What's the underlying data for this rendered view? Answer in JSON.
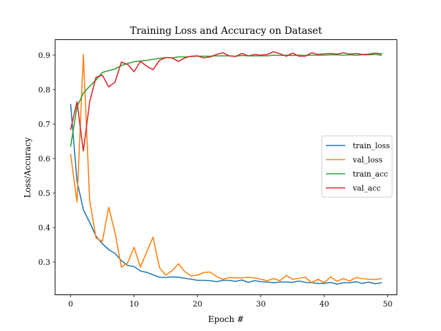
{
  "chart_data": {
    "type": "line",
    "title": "Training Loss and Accuracy on Dataset",
    "xlabel": "Epoch #",
    "ylabel": "Loss/Accuracy",
    "xlim": [
      -2.45,
      51.45
    ],
    "ylim": [
      0.205,
      0.945
    ],
    "xticks": [
      0,
      10,
      20,
      30,
      40,
      50
    ],
    "yticks": [
      0.3,
      0.4,
      0.5,
      0.6,
      0.7,
      0.8,
      0.9
    ],
    "ytick_labels": [
      "0.3",
      "0.4",
      "0.5",
      "0.6",
      "0.7",
      "0.8",
      "0.9"
    ],
    "grid": false,
    "legend_position": "center-right",
    "x": [
      0,
      1,
      2,
      3,
      4,
      5,
      6,
      7,
      8,
      9,
      10,
      11,
      12,
      13,
      14,
      15,
      16,
      17,
      18,
      19,
      20,
      21,
      22,
      23,
      24,
      25,
      26,
      27,
      28,
      29,
      30,
      31,
      32,
      33,
      34,
      35,
      36,
      37,
      38,
      39,
      40,
      41,
      42,
      43,
      44,
      45,
      46,
      47,
      48,
      49
    ],
    "series": [
      {
        "name": "train_loss",
        "color": "#1f77b4",
        "values": [
          0.757,
          0.535,
          0.452,
          0.415,
          0.375,
          0.353,
          0.336,
          0.325,
          0.304,
          0.29,
          0.287,
          0.274,
          0.27,
          0.263,
          0.256,
          0.255,
          0.257,
          0.256,
          0.253,
          0.25,
          0.247,
          0.247,
          0.246,
          0.243,
          0.247,
          0.247,
          0.244,
          0.248,
          0.241,
          0.246,
          0.243,
          0.242,
          0.24,
          0.242,
          0.242,
          0.241,
          0.245,
          0.241,
          0.24,
          0.238,
          0.238,
          0.241,
          0.236,
          0.24,
          0.24,
          0.243,
          0.238,
          0.242,
          0.237,
          0.24
        ]
      },
      {
        "name": "val_loss",
        "color": "#ff7f0e",
        "values": [
          0.612,
          0.474,
          0.902,
          0.478,
          0.37,
          0.36,
          0.459,
          0.385,
          0.285,
          0.298,
          0.343,
          0.285,
          0.33,
          0.372,
          0.284,
          0.262,
          0.275,
          0.295,
          0.272,
          0.26,
          0.262,
          0.27,
          0.271,
          0.258,
          0.25,
          0.255,
          0.254,
          0.254,
          0.256,
          0.254,
          0.25,
          0.246,
          0.252,
          0.246,
          0.261,
          0.25,
          0.253,
          0.256,
          0.24,
          0.25,
          0.24,
          0.257,
          0.244,
          0.252,
          0.245,
          0.255,
          0.252,
          0.25,
          0.249,
          0.252
        ]
      },
      {
        "name": "train_acc",
        "color": "#2ca02c",
        "values": [
          0.636,
          0.75,
          0.79,
          0.81,
          0.828,
          0.85,
          0.855,
          0.86,
          0.87,
          0.876,
          0.881,
          0.883,
          0.885,
          0.888,
          0.891,
          0.893,
          0.892,
          0.895,
          0.895,
          0.896,
          0.897,
          0.897,
          0.897,
          0.898,
          0.898,
          0.898,
          0.897,
          0.899,
          0.898,
          0.898,
          0.898,
          0.898,
          0.9,
          0.899,
          0.9,
          0.899,
          0.9,
          0.899,
          0.9,
          0.9,
          0.9,
          0.901,
          0.901,
          0.9,
          0.901,
          0.9,
          0.901,
          0.901,
          0.902,
          0.9
        ]
      },
      {
        "name": "val_acc",
        "color": "#d62728",
        "values": [
          0.685,
          0.765,
          0.622,
          0.765,
          0.836,
          0.842,
          0.808,
          0.822,
          0.88,
          0.873,
          0.852,
          0.882,
          0.868,
          0.858,
          0.885,
          0.893,
          0.892,
          0.882,
          0.892,
          0.897,
          0.898,
          0.892,
          0.895,
          0.902,
          0.907,
          0.898,
          0.896,
          0.905,
          0.898,
          0.902,
          0.9,
          0.902,
          0.91,
          0.904,
          0.897,
          0.906,
          0.897,
          0.897,
          0.907,
          0.902,
          0.904,
          0.905,
          0.903,
          0.907,
          0.903,
          0.905,
          0.902,
          0.903,
          0.906,
          0.904
        ]
      }
    ]
  }
}
